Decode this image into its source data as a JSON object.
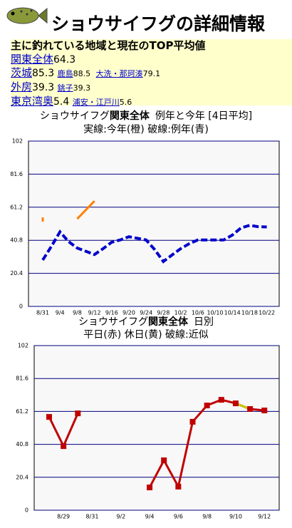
{
  "header": {
    "title": "ショウサイフグの詳細情報"
  },
  "regions": {
    "heading": "主に釣れている地域と現在のTOP平均値",
    "rows": [
      {
        "name": "関東全体",
        "value": 64.3,
        "subs": []
      },
      {
        "name": "茨城",
        "value": 85.3,
        "subs": [
          {
            "name": "鹿島",
            "value": 88.5
          },
          {
            "name": "大洗・那珂湊",
            "value": 79.1
          }
        ]
      },
      {
        "name": "外房",
        "value": 39.3,
        "subs": [
          {
            "name": "銚子",
            "value": 39.3
          }
        ]
      },
      {
        "name": "東京湾奥",
        "value": 5.4,
        "subs": [
          {
            "name": "浦安・江戸川",
            "value": 5.6
          }
        ]
      }
    ]
  },
  "chart_data": [
    {
      "type": "line",
      "title": [
        "ショウサイフグ",
        "関東全体",
        "例年と今年 [4日平均]"
      ],
      "subtitle": "実線:今年(橙) 破線:例年(青)",
      "categories": [
        "8/31",
        null,
        "9/4",
        null,
        "9/8",
        null,
        "9/12",
        null,
        "9/16",
        null,
        "9/20",
        null,
        "9/24",
        null,
        "9/28",
        null,
        "10/2",
        null,
        "10/6",
        null,
        "10/10",
        null,
        "10/14",
        null,
        "10/18",
        null,
        "10/22"
      ],
      "series": [
        {
          "name": "例年",
          "color": "#0000cc",
          "dashed": true,
          "values": [
            28.6,
            37,
            46,
            40,
            36,
            34,
            32,
            35.6,
            39.6,
            41,
            43,
            42,
            41,
            35,
            27.7,
            31.7,
            35.6,
            38.7,
            41,
            41,
            41,
            41,
            44,
            48.4,
            50,
            49.2,
            49
          ]
        },
        {
          "name": "今年",
          "color": "#ff8000",
          "dashed": false,
          "values": [
            53.6,
            null,
            null,
            null,
            54,
            59.5,
            65,
            null,
            null,
            null,
            null,
            null,
            null,
            null,
            null,
            null,
            null,
            null,
            null,
            null,
            null,
            null,
            null,
            null,
            null,
            null,
            null
          ]
        }
      ],
      "ylim": [
        0,
        102
      ],
      "yticks": [
        0,
        20.4,
        40.8,
        61.2,
        81.6,
        102
      ],
      "grid": true
    },
    {
      "type": "line",
      "title": [
        "ショウサイフグ",
        "関東全体",
        "日別"
      ],
      "subtitle": "平日(赤) 休日(黄) 破線:近似",
      "categories": [
        null,
        "8/29",
        null,
        "8/31",
        null,
        "9/2",
        null,
        "9/4",
        null,
        "9/6",
        null,
        "9/8",
        null,
        "9/10",
        null,
        "9/12"
      ],
      "series": [
        {
          "name": "平日",
          "color": "#c00000",
          "dashed": false,
          "markers": true,
          "values": [
            57.8,
            39.7,
            60,
            null,
            null,
            null,
            null,
            14.1,
            30.9,
            14.6,
            54.8,
            64.9,
            68.4,
            66.2,
            62.7,
            61.8
          ]
        },
        {
          "name": "休日",
          "color": "#c8c800",
          "dashed": false,
          "markers": false,
          "values": [
            null,
            null,
            null,
            null,
            null,
            null,
            null,
            null,
            null,
            null,
            null,
            null,
            null,
            66.2,
            62.7,
            null
          ]
        }
      ],
      "ylim": [
        0,
        102
      ],
      "yticks": [
        0,
        20.4,
        40.8,
        61.2,
        81.6,
        102
      ],
      "grid": true
    }
  ]
}
